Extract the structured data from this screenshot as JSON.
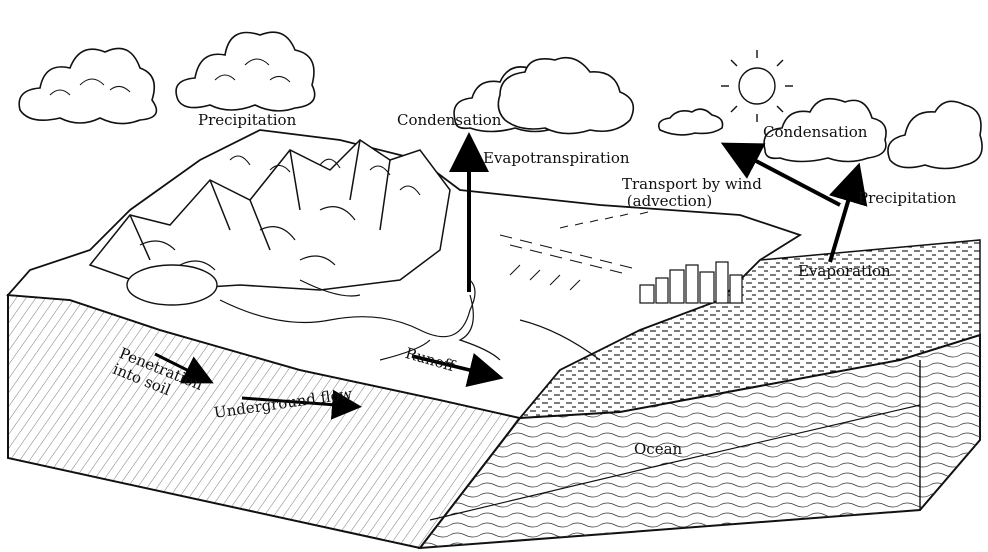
{
  "labels": {
    "precipitation_left": "Precipitation",
    "condensation_center": "Condensation",
    "evapotranspiration": "Evapotranspiration",
    "condensation_right": "Condensation",
    "transport": "Transport by wind\n (advection)",
    "precipitation_right": "Precipitation",
    "evaporation": "Evaporation",
    "runoff": "Runoff",
    "penetration": "Penetration\ninto soil",
    "underground_flow": "Underground flow",
    "ocean": "Ocean"
  }
}
